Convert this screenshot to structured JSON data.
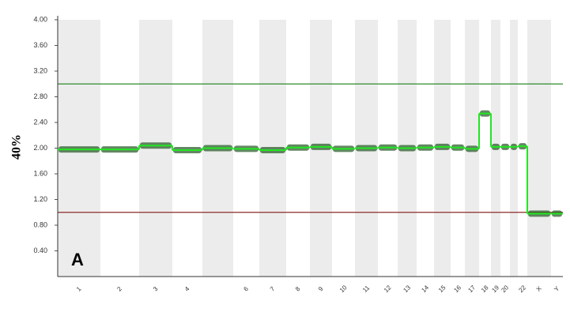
{
  "chart_data": {
    "type": "step",
    "y_label": "40%",
    "annotation": "A",
    "categories": [
      "1",
      "2",
      "3",
      "4",
      null,
      "6",
      "7",
      "8",
      "9",
      "10",
      "11",
      "12",
      "13",
      "14",
      "15",
      "16",
      "17",
      "18",
      "19",
      "20",
      null,
      "22",
      "X",
      "Y"
    ],
    "series": [
      {
        "color": "#22e622",
        "values": [
          1.98,
          1.98,
          2.04,
          1.97,
          2.0,
          1.99,
          1.97,
          2.01,
          2.02,
          1.99,
          2.0,
          2.01,
          2.0,
          2.01,
          2.02,
          2.01,
          1.99,
          2.54,
          2.02,
          2.02,
          2.02,
          2.03,
          0.98,
          0.98
        ]
      }
    ],
    "reference_lines": [
      {
        "value": 3.0,
        "color": "#2e8b2e"
      },
      {
        "value": 1.0,
        "color": "#8b2a2a"
      }
    ],
    "ylim": [
      0,
      4
    ],
    "yticks": [
      {
        "value": 0.4,
        "label": "0.40"
      },
      {
        "value": 0.8,
        "label": "0.80"
      },
      {
        "value": 1.2,
        "label": "1.20"
      },
      {
        "value": 1.6,
        "label": "1.60"
      },
      {
        "value": 2.0,
        "label": "2.00"
      },
      {
        "value": 2.4,
        "label": "2.40"
      },
      {
        "value": 2.8,
        "label": "2.80"
      },
      {
        "value": 3.2,
        "label": "3.20"
      },
      {
        "value": 3.6,
        "label": "3.60"
      },
      {
        "value": 4.0,
        "label": "4.00"
      }
    ],
    "alternate_shading": true
  }
}
